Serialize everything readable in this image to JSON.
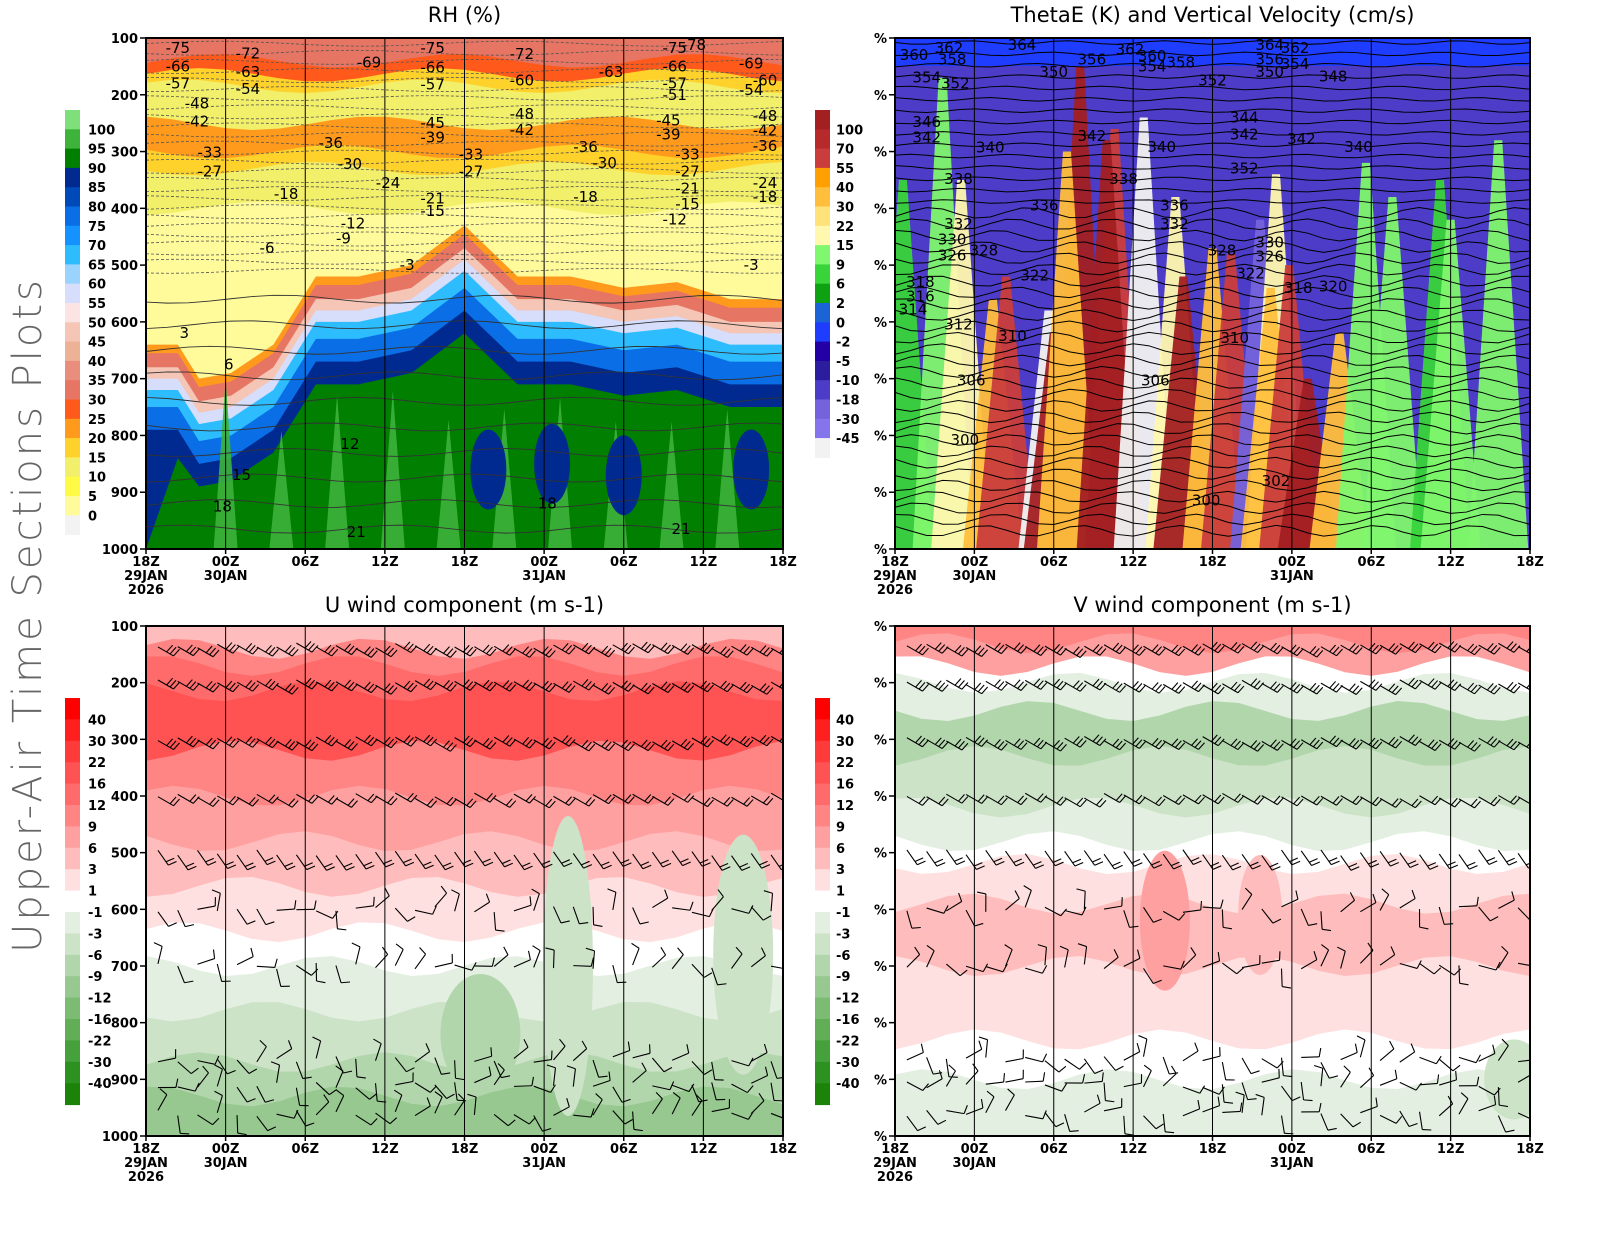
{
  "page": {
    "side_title": "Upper-Air Time Sections Plots"
  },
  "time_axis": {
    "ticks": [
      "18Z",
      "00Z",
      "06Z",
      "12Z",
      "18Z",
      "00Z",
      "06Z",
      "12Z",
      "18Z"
    ],
    "dates": [
      {
        "tick_index": 0,
        "lines": [
          "29JAN",
          "2026"
        ]
      },
      {
        "tick_index": 1,
        "lines": [
          "30JAN"
        ]
      },
      {
        "tick_index": 5,
        "lines": [
          "31JAN"
        ]
      }
    ]
  },
  "chart_data": [
    {
      "id": "rh",
      "type": "heatmap",
      "title": "RH (%)",
      "xlabel": "",
      "ylabel": "",
      "y_ticks": [
        "100",
        "200",
        "300",
        "400",
        "500",
        "600",
        "700",
        "800",
        "900",
        "1000"
      ],
      "ylim": [
        100,
        1000
      ],
      "y_reversed": true,
      "colorbar": {
        "labels": [
          "100",
          "95",
          "90",
          "85",
          "80",
          "75",
          "70",
          "65",
          "60",
          "55",
          "50",
          "45",
          "40",
          "35",
          "30",
          "25",
          "20",
          "15",
          "10",
          "5",
          "0"
        ],
        "colors": [
          "#7fe07b",
          "#3db33b",
          "#007f00",
          "#002a8f",
          "#0049b8",
          "#0a6fe6",
          "#1492ff",
          "#2dbdff",
          "#9bd3ff",
          "#d6defc",
          "#fce4e4",
          "#f5c5b5",
          "#edb195",
          "#e98d7d",
          "#e67563",
          "#ff5a1c",
          "#ff9a1c",
          "#ffd12b",
          "#f2ef6a",
          "#fffb45",
          "#fffb9a",
          "#f3f3f3"
        ]
      },
      "temperature_contour_labels": [
        {
          "time": 0.5,
          "p": 118,
          "label": "-75"
        },
        {
          "time": 0.5,
          "p": 150,
          "label": "-66"
        },
        {
          "time": 0.5,
          "p": 180,
          "label": "-57"
        },
        {
          "time": 0.8,
          "p": 215,
          "label": "-48"
        },
        {
          "time": 0.8,
          "p": 247,
          "label": "-42"
        },
        {
          "time": 1.0,
          "p": 302,
          "label": "-33"
        },
        {
          "time": 1.0,
          "p": 335,
          "label": "-27"
        },
        {
          "time": 1.6,
          "p": 127,
          "label": "-72"
        },
        {
          "time": 1.6,
          "p": 160,
          "label": "-63"
        },
        {
          "time": 1.6,
          "p": 190,
          "label": "-54"
        },
        {
          "time": 2.2,
          "p": 375,
          "label": "-18"
        },
        {
          "time": 1.9,
          "p": 470,
          "label": "-6"
        },
        {
          "time": 3.5,
          "p": 143,
          "label": "-69"
        },
        {
          "time": 2.9,
          "p": 285,
          "label": "-36"
        },
        {
          "time": 3.2,
          "p": 322,
          "label": "-30"
        },
        {
          "time": 3.8,
          "p": 355,
          "label": "-24"
        },
        {
          "time": 3.25,
          "p": 427,
          "label": "-12"
        },
        {
          "time": 3.1,
          "p": 453,
          "label": "-9"
        },
        {
          "time": 4.1,
          "p": 500,
          "label": "-3"
        },
        {
          "time": 4.5,
          "p": 118,
          "label": "-75"
        },
        {
          "time": 4.5,
          "p": 152,
          "label": "-66"
        },
        {
          "time": 4.5,
          "p": 182,
          "label": "-57"
        },
        {
          "time": 4.5,
          "p": 250,
          "label": "-45"
        },
        {
          "time": 4.5,
          "p": 275,
          "label": "-39"
        },
        {
          "time": 4.5,
          "p": 405,
          "label": "-15"
        },
        {
          "time": 4.5,
          "p": 383,
          "label": "-21"
        },
        {
          "time": 5.1,
          "p": 305,
          "label": "-33"
        },
        {
          "time": 5.1,
          "p": 335,
          "label": "-27"
        },
        {
          "time": 5.9,
          "p": 128,
          "label": "-72"
        },
        {
          "time": 5.9,
          "p": 175,
          "label": "-60"
        },
        {
          "time": 5.9,
          "p": 234,
          "label": "-48"
        },
        {
          "time": 5.9,
          "p": 262,
          "label": "-42"
        },
        {
          "time": 6.9,
          "p": 292,
          "label": "-36"
        },
        {
          "time": 6.9,
          "p": 380,
          "label": "-18"
        },
        {
          "time": 7.3,
          "p": 160,
          "label": "-63"
        },
        {
          "time": 7.2,
          "p": 320,
          "label": "-30"
        },
        {
          "time": 8.3,
          "p": 118,
          "label": "-75"
        },
        {
          "time": 8.6,
          "p": 100,
          "label": "-78"
        },
        {
          "time": 8.3,
          "p": 150,
          "label": "-66"
        },
        {
          "time": 8.3,
          "p": 180,
          "label": "-57"
        },
        {
          "time": 8.3,
          "p": 200,
          "label": "-51"
        },
        {
          "time": 8.2,
          "p": 245,
          "label": "-45"
        },
        {
          "time": 8.2,
          "p": 270,
          "label": "-39"
        },
        {
          "time": 8.5,
          "p": 305,
          "label": "-33"
        },
        {
          "time": 8.5,
          "p": 335,
          "label": "-27"
        },
        {
          "time": 8.5,
          "p": 365,
          "label": "-21"
        },
        {
          "time": 8.5,
          "p": 392,
          "label": "-15"
        },
        {
          "time": 8.3,
          "p": 420,
          "label": "-12"
        },
        {
          "time": 9.5,
          "p": 145,
          "label": "-69"
        },
        {
          "time": 9.5,
          "p": 192,
          "label": "-54"
        },
        {
          "time": 9.9,
          "p": 175,
          "label": "-60"
        },
        {
          "time": 9.9,
          "p": 237,
          "label": "-48"
        },
        {
          "time": 9.9,
          "p": 263,
          "label": "-42"
        },
        {
          "time": 9.9,
          "p": 290,
          "label": "-36"
        },
        {
          "time": 9.9,
          "p": 355,
          "label": "-24"
        },
        {
          "time": 9.9,
          "p": 380,
          "label": "-18"
        },
        {
          "time": 9.5,
          "p": 500,
          "label": "-3"
        },
        {
          "time": 0.6,
          "p": 620,
          "label": "3"
        },
        {
          "time": 1.3,
          "p": 675,
          "label": "6"
        },
        {
          "time": 3.2,
          "p": 815,
          "label": "12"
        },
        {
          "time": 1.5,
          "p": 870,
          "label": "15"
        },
        {
          "time": 1.2,
          "p": 925,
          "label": "18"
        },
        {
          "time": 6.3,
          "p": 920,
          "label": "18"
        },
        {
          "time": 3.3,
          "p": 970,
          "label": "21"
        },
        {
          "time": 8.4,
          "p": 965,
          "label": "21"
        }
      ]
    },
    {
      "id": "thetae",
      "type": "heatmap",
      "title": "ThetaE (K) and Vertical Velocity (cm/s)",
      "y_ticks": [
        "%",
        "%",
        "%",
        "%",
        "%",
        "%",
        "%",
        "%",
        "%",
        "%"
      ],
      "y_reversed": true,
      "colorbar": {
        "labels": [
          "100",
          "70",
          "55",
          "40",
          "30",
          "22",
          "15",
          "9",
          "6",
          "2",
          "0",
          "-2",
          "-5",
          "-10",
          "-18",
          "-30",
          "-45"
        ],
        "colors": [
          "#a21f22",
          "#b72a2b",
          "#c93d3c",
          "#ff9f00",
          "#ffbf3c",
          "#ffe27a",
          "#fff8ae",
          "#7ff76e",
          "#38d43a",
          "#0ea112",
          "#1c64d6",
          "#1f3dff",
          "#2200a6",
          "#2c1d9e",
          "#4c3cc8",
          "#7463dc",
          "#8575ec",
          "#f2f2f2"
        ]
      },
      "thetae_contour_labels": [
        {
          "time": 0.3,
          "p": 130,
          "label": "360"
        },
        {
          "time": 0.85,
          "p": 118,
          "label": "362"
        },
        {
          "time": 0.9,
          "p": 138,
          "label": "358"
        },
        {
          "time": 0.5,
          "p": 170,
          "label": "354"
        },
        {
          "time": 0.95,
          "p": 180,
          "label": "352"
        },
        {
          "time": 0.5,
          "p": 248,
          "label": "346"
        },
        {
          "time": 0.5,
          "p": 275,
          "label": "342"
        },
        {
          "time": 1.5,
          "p": 293,
          "label": "340"
        },
        {
          "time": 1.0,
          "p": 348,
          "label": "338"
        },
        {
          "time": 1.0,
          "p": 428,
          "label": "332"
        },
        {
          "time": 0.9,
          "p": 455,
          "label": "330"
        },
        {
          "time": 0.9,
          "p": 483,
          "label": "326"
        },
        {
          "time": 1.4,
          "p": 474,
          "label": "328"
        },
        {
          "time": 0.4,
          "p": 530,
          "label": "318"
        },
        {
          "time": 0.4,
          "p": 555,
          "label": "316"
        },
        {
          "time": 0.2,
          "p": 578,
          "label": "314"
        },
        {
          "time": 1.0,
          "p": 605,
          "label": "312"
        },
        {
          "time": 1.85,
          "p": 625,
          "label": "310"
        },
        {
          "time": 1.2,
          "p": 703,
          "label": "306"
        },
        {
          "time": 1.1,
          "p": 808,
          "label": "300"
        },
        {
          "time": 2.0,
          "p": 107,
          "label": "364"
        },
        {
          "time": 3.7,
          "p": 120,
          "label": "362"
        },
        {
          "time": 3.1,
          "p": 138,
          "label": "356"
        },
        {
          "time": 2.5,
          "p": 160,
          "label": "350"
        },
        {
          "time": 3.1,
          "p": 273,
          "label": "342"
        },
        {
          "time": 2.35,
          "p": 395,
          "label": "336"
        },
        {
          "time": 2.2,
          "p": 518,
          "label": "322"
        },
        {
          "time": 4.05,
          "p": 132,
          "label": "360"
        },
        {
          "time": 4.05,
          "p": 150,
          "label": "354"
        },
        {
          "time": 4.5,
          "p": 143,
          "label": "358"
        },
        {
          "time": 5.0,
          "p": 175,
          "label": "352"
        },
        {
          "time": 5.5,
          "p": 240,
          "label": "344"
        },
        {
          "time": 5.5,
          "p": 270,
          "label": "342"
        },
        {
          "time": 3.6,
          "p": 348,
          "label": "338"
        },
        {
          "time": 4.2,
          "p": 292,
          "label": "340"
        },
        {
          "time": 4.4,
          "p": 395,
          "label": "336"
        },
        {
          "time": 4.4,
          "p": 428,
          "label": "332"
        },
        {
          "time": 5.15,
          "p": 474,
          "label": "328"
        },
        {
          "time": 4.1,
          "p": 703,
          "label": "306"
        },
        {
          "time": 5.9,
          "p": 107,
          "label": "364"
        },
        {
          "time": 5.9,
          "p": 138,
          "label": "356"
        },
        {
          "time": 5.9,
          "p": 160,
          "label": "350"
        },
        {
          "time": 6.3,
          "p": 118,
          "label": "362"
        },
        {
          "time": 6.3,
          "p": 146,
          "label": "354"
        },
        {
          "time": 6.9,
          "p": 168,
          "label": "348"
        },
        {
          "time": 6.4,
          "p": 278,
          "label": "342"
        },
        {
          "time": 7.3,
          "p": 292,
          "label": "340"
        },
        {
          "time": 5.5,
          "p": 330,
          "label": "352"
        },
        {
          "time": 5.9,
          "p": 460,
          "label": "330"
        },
        {
          "time": 5.9,
          "p": 485,
          "label": "326"
        },
        {
          "time": 5.6,
          "p": 515,
          "label": "322"
        },
        {
          "time": 6.35,
          "p": 540,
          "label": "318"
        },
        {
          "time": 6.9,
          "p": 538,
          "label": "320"
        },
        {
          "time": 5.35,
          "p": 628,
          "label": "310"
        },
        {
          "time": 6.0,
          "p": 880,
          "label": "302"
        },
        {
          "time": 4.9,
          "p": 915,
          "label": "300"
        }
      ]
    },
    {
      "id": "uwind",
      "type": "heatmap",
      "title": "U wind component (m s-1)",
      "y_ticks": [
        "100",
        "200",
        "300",
        "400",
        "500",
        "600",
        "700",
        "800",
        "900",
        "1000"
      ],
      "y_reversed": true,
      "colorbar": {
        "labels": [
          "40",
          "30",
          "22",
          "16",
          "12",
          "9",
          "6",
          "3",
          "1",
          "-1",
          "-3",
          "-6",
          "-9",
          "-12",
          "-16",
          "-22",
          "-30",
          "-40"
        ],
        "colors": [
          "#ff0000",
          "#ff1f1f",
          "#ff3a3a",
          "#ff5252",
          "#ff6b6b",
          "#ff8585",
          "#ffa0a0",
          "#ffbcbc",
          "#ffe0e0",
          "#ffffff",
          "#e3efe1",
          "#cde3c8",
          "#b2d6ac",
          "#96c88f",
          "#7bbb72",
          "#61ae56",
          "#46a03b",
          "#2d9121",
          "#1a8308"
        ]
      },
      "barb_levels": [
        135,
        200,
        300,
        400,
        500,
        600,
        700,
        865,
        910,
        960
      ]
    },
    {
      "id": "vwind",
      "type": "heatmap",
      "title": "V wind component (m s-1)",
      "y_ticks": [
        "%",
        "%",
        "%",
        "%",
        "%",
        "%",
        "%",
        "%",
        "%",
        "%"
      ],
      "y_reversed": true,
      "colorbar": {
        "labels": [
          "40",
          "30",
          "22",
          "16",
          "12",
          "9",
          "6",
          "3",
          "1",
          "-1",
          "-3",
          "-6",
          "-9",
          "-12",
          "-16",
          "-22",
          "-30",
          "-40"
        ],
        "colors": [
          "#ff0000",
          "#ff1f1f",
          "#ff3a3a",
          "#ff5252",
          "#ff6b6b",
          "#ff8585",
          "#ffa0a0",
          "#ffbcbc",
          "#ffe0e0",
          "#ffffff",
          "#e3efe1",
          "#cde3c8",
          "#b2d6ac",
          "#96c88f",
          "#7bbb72",
          "#61ae56",
          "#46a03b",
          "#2d9121",
          "#1a8308"
        ]
      },
      "barb_levels": [
        135,
        200,
        300,
        400,
        500,
        600,
        700,
        865,
        910,
        960
      ]
    }
  ]
}
